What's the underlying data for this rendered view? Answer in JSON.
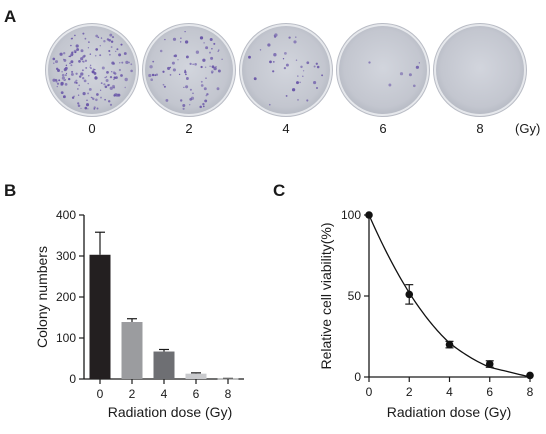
{
  "panel_a": {
    "letter": "A",
    "dose_labels": [
      "0",
      "2",
      "4",
      "6",
      "8"
    ],
    "unit": "(Gy)",
    "colony_density": [
      1.0,
      0.46,
      0.22,
      0.04,
      0.0
    ],
    "colors": {
      "dish_fill": "#c7cad3",
      "dish_rim": "#e6e8ec",
      "colony": "#6a57a8"
    }
  },
  "chart_data": [
    {
      "panel": "B",
      "type": "bar",
      "categories": [
        "0",
        "2",
        "4",
        "6",
        "8"
      ],
      "values": [
        303,
        139,
        67,
        13,
        1
      ],
      "errors": [
        55,
        8,
        5,
        2,
        0.5
      ],
      "colors": [
        "#231f20",
        "#9b9c9f",
        "#6e6f73",
        "#c9cacd",
        "#e1e2e4"
      ],
      "xlabel": "Radiation dose (Gy)",
      "ylabel": "Colony numbers",
      "ylim": [
        0,
        400
      ],
      "yticks": [
        0,
        100,
        200,
        300,
        400
      ],
      "grid": false,
      "legend": "none"
    },
    {
      "panel": "C",
      "type": "scatter",
      "x": [
        0,
        2,
        4,
        6,
        8
      ],
      "y": [
        100,
        51,
        20,
        8,
        1
      ],
      "errors": [
        0,
        6,
        2,
        2,
        0.5
      ],
      "fit": {
        "kind": "smooth curve through points",
        "x": [
          0,
          2,
          4,
          6,
          8
        ],
        "y": [
          100,
          52,
          21,
          6,
          0
        ]
      },
      "xlabel": "Radiation dose (Gy)",
      "ylabel": "Relative cell viability(%)",
      "xlim": [
        0,
        8
      ],
      "ylim": [
        0,
        100
      ],
      "xticks": [
        0,
        2,
        4,
        6,
        8
      ],
      "yticks": [
        0,
        50,
        100
      ],
      "grid": false,
      "legend": "none",
      "colors": {
        "marker": "#111111",
        "line": "#111111"
      }
    }
  ]
}
